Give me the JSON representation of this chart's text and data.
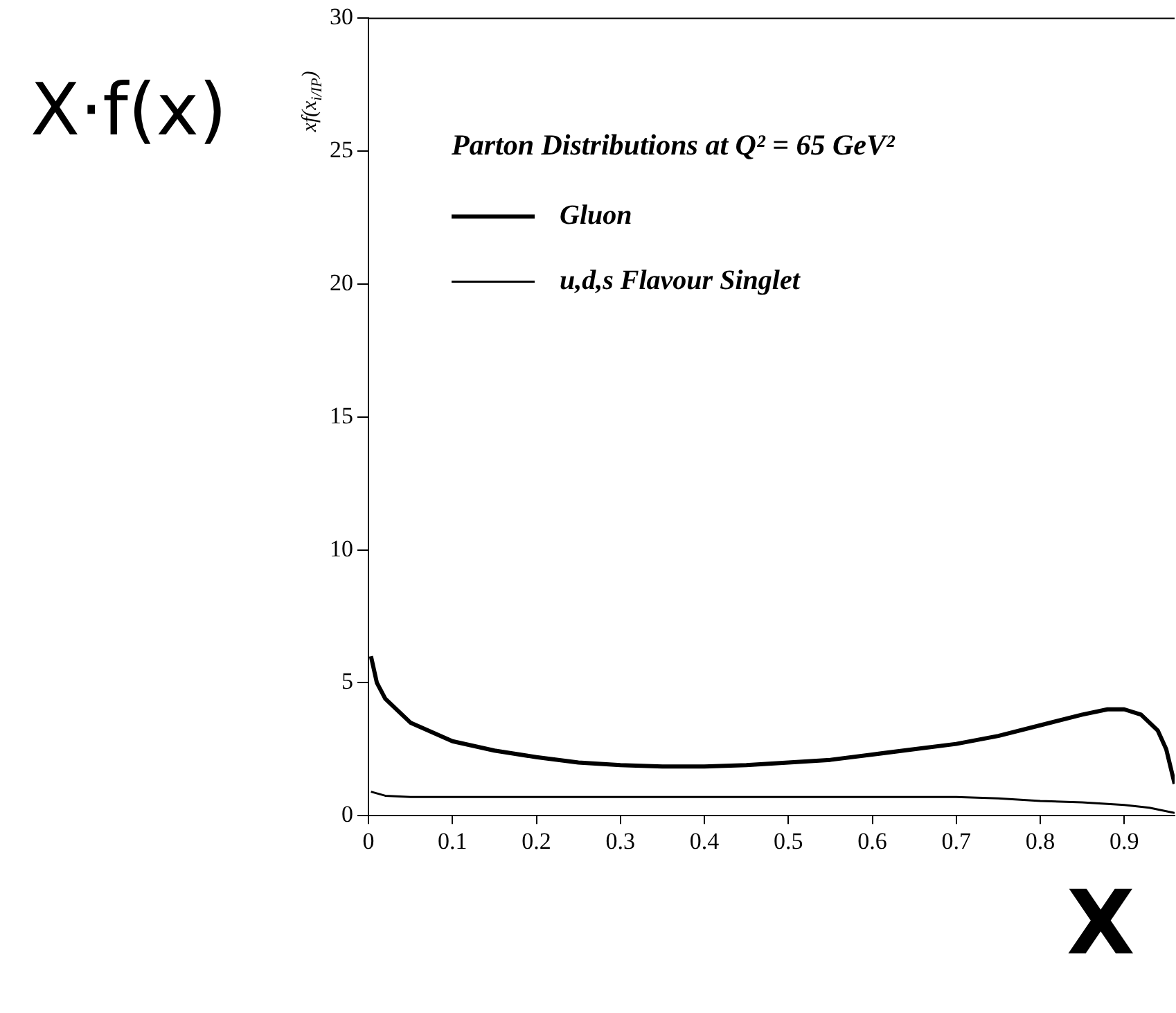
{
  "chart_data": {
    "type": "line",
    "title": "Parton Distributions at Q² = 65 GeV²",
    "ylabel": "xf(x$_{i/IP}$)",
    "annotations": [
      "X·f(x)",
      "X"
    ],
    "xlim": [
      0,
      0.96
    ],
    "xticks": [
      0,
      0.1,
      0.2,
      0.3,
      0.4,
      0.5,
      0.6,
      0.7,
      0.8,
      0.9
    ],
    "ylim": [
      0,
      30
    ],
    "yticks": [
      0,
      5,
      10,
      15,
      20,
      25,
      30
    ],
    "grid": false,
    "legend": "top left",
    "marker": "none",
    "line_style": "solid",
    "series": [
      {
        "name": "Gluon",
        "color": "#000000",
        "x": [
          0.003,
          0.01,
          0.02,
          0.05,
          0.1,
          0.15,
          0.2,
          0.25,
          0.3,
          0.35,
          0.4,
          0.45,
          0.5,
          0.55,
          0.6,
          0.65,
          0.7,
          0.75,
          0.8,
          0.85,
          0.88,
          0.9,
          0.92,
          0.94,
          0.95,
          0.96
        ],
        "values": [
          6.0,
          5.0,
          4.4,
          3.5,
          2.8,
          2.45,
          2.2,
          2.0,
          1.9,
          1.85,
          1.85,
          1.9,
          2.0,
          2.1,
          2.3,
          2.5,
          2.7,
          3.0,
          3.4,
          3.8,
          4.0,
          4.0,
          3.8,
          3.2,
          2.5,
          1.2
        ]
      },
      {
        "name": "u,d,s Flavour Singlet",
        "color": "#000000",
        "x": [
          0.003,
          0.02,
          0.05,
          0.1,
          0.2,
          0.3,
          0.4,
          0.5,
          0.6,
          0.7,
          0.75,
          0.8,
          0.85,
          0.9,
          0.93,
          0.96
        ],
        "values": [
          0.9,
          0.75,
          0.7,
          0.7,
          0.7,
          0.7,
          0.7,
          0.7,
          0.7,
          0.7,
          0.65,
          0.55,
          0.5,
          0.4,
          0.3,
          0.1
        ]
      }
    ]
  }
}
